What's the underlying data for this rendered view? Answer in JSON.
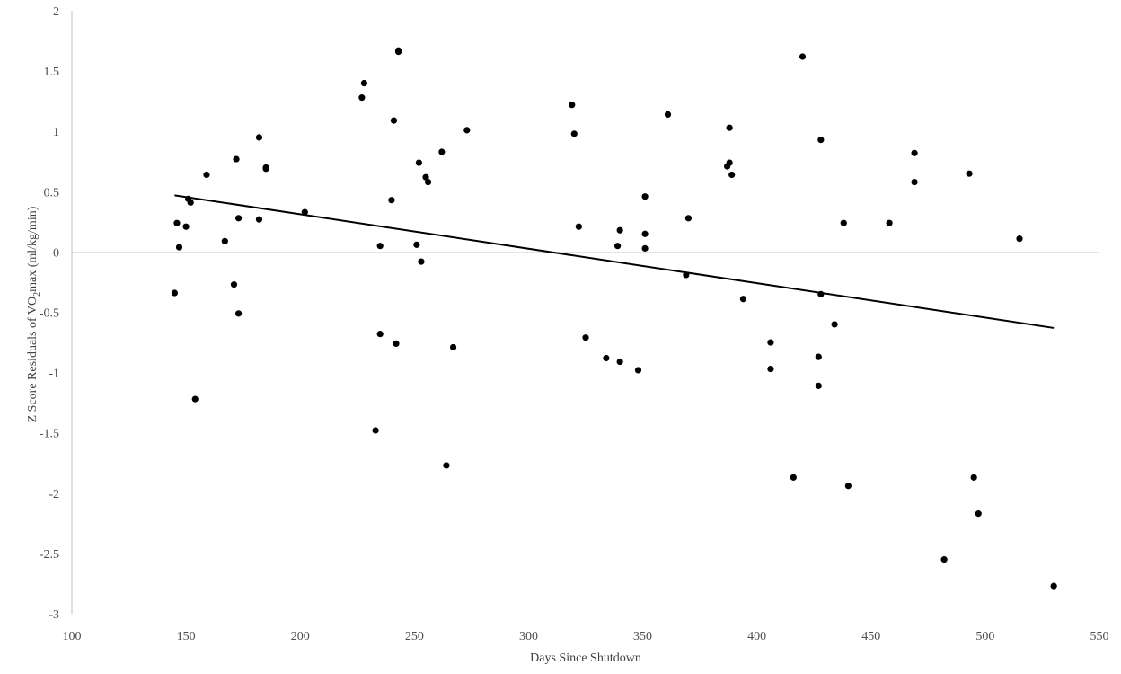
{
  "chart_data": {
    "type": "scatter",
    "title": "",
    "xlabel": "Days Since Shutdown",
    "ylabel": {
      "prefix": "Z Score Residuals  of VO",
      "subscript": "2",
      "suffix": "max (ml/kg/min)"
    },
    "xlim": [
      100,
      550
    ],
    "ylim": [
      -3,
      2
    ],
    "x_ticks": [
      "100",
      "150",
      "200",
      "250",
      "300",
      "350",
      "400",
      "450",
      "500",
      "550"
    ],
    "y_ticks": [
      "2",
      "1.5",
      "1",
      "0.5",
      "0",
      "-0.5",
      "-1",
      "-1.5",
      "-2",
      "-2.5",
      "-3"
    ],
    "grid": false,
    "legend": "none",
    "colors": {
      "points": "#000000",
      "trendline": "#000000",
      "zero_line": "#c8c8c8",
      "text": "#4d4d4d"
    },
    "points": [
      [
        145,
        -0.34
      ],
      [
        146,
        0.24
      ],
      [
        147,
        0.04
      ],
      [
        150,
        0.21
      ],
      [
        151,
        0.44
      ],
      [
        152,
        0.41
      ],
      [
        154,
        -1.22
      ],
      [
        159,
        0.64
      ],
      [
        167,
        0.09
      ],
      [
        171,
        -0.27
      ],
      [
        172,
        0.77
      ],
      [
        173,
        0.28
      ],
      [
        173,
        -0.51
      ],
      [
        182,
        0.95
      ],
      [
        182,
        0.27
      ],
      [
        185,
        0.7
      ],
      [
        185,
        0.69
      ],
      [
        202,
        0.33
      ],
      [
        227,
        1.28
      ],
      [
        228,
        1.4
      ],
      [
        233,
        -1.48
      ],
      [
        235,
        -0.68
      ],
      [
        235,
        0.05
      ],
      [
        240,
        0.43
      ],
      [
        241,
        1.09
      ],
      [
        242,
        -0.76
      ],
      [
        243,
        1.66
      ],
      [
        243,
        1.67
      ],
      [
        251,
        0.06
      ],
      [
        252,
        0.74
      ],
      [
        253,
        -0.08
      ],
      [
        255,
        0.62
      ],
      [
        256,
        0.58
      ],
      [
        262,
        0.83
      ],
      [
        264,
        -1.77
      ],
      [
        267,
        -0.79
      ],
      [
        273,
        1.01
      ],
      [
        319,
        1.22
      ],
      [
        320,
        0.98
      ],
      [
        322,
        0.21
      ],
      [
        325,
        -0.71
      ],
      [
        334,
        -0.88
      ],
      [
        339,
        0.05
      ],
      [
        340,
        0.18
      ],
      [
        340,
        -0.91
      ],
      [
        348,
        -0.98
      ],
      [
        351,
        0.46
      ],
      [
        351,
        0.15
      ],
      [
        351,
        0.03
      ],
      [
        361,
        1.14
      ],
      [
        369,
        -0.19
      ],
      [
        370,
        0.28
      ],
      [
        387,
        0.71
      ],
      [
        388,
        0.74
      ],
      [
        388,
        1.03
      ],
      [
        389,
        0.64
      ],
      [
        394,
        -0.39
      ],
      [
        406,
        -0.75
      ],
      [
        406,
        -0.97
      ],
      [
        416,
        -1.87
      ],
      [
        420,
        1.62
      ],
      [
        427,
        -0.87
      ],
      [
        427,
        -1.11
      ],
      [
        428,
        0.93
      ],
      [
        428,
        -0.35
      ],
      [
        434,
        -0.6
      ],
      [
        438,
        0.24
      ],
      [
        440,
        -1.94
      ],
      [
        458,
        0.24
      ],
      [
        469,
        0.82
      ],
      [
        469,
        0.58
      ],
      [
        482,
        -2.55
      ],
      [
        493,
        0.65
      ],
      [
        495,
        -1.87
      ],
      [
        497,
        -2.17
      ],
      [
        515,
        0.11
      ],
      [
        530,
        -2.77
      ]
    ],
    "trendline": {
      "type": "linear",
      "start": [
        145,
        0.47
      ],
      "end": [
        530,
        -0.63
      ]
    }
  }
}
